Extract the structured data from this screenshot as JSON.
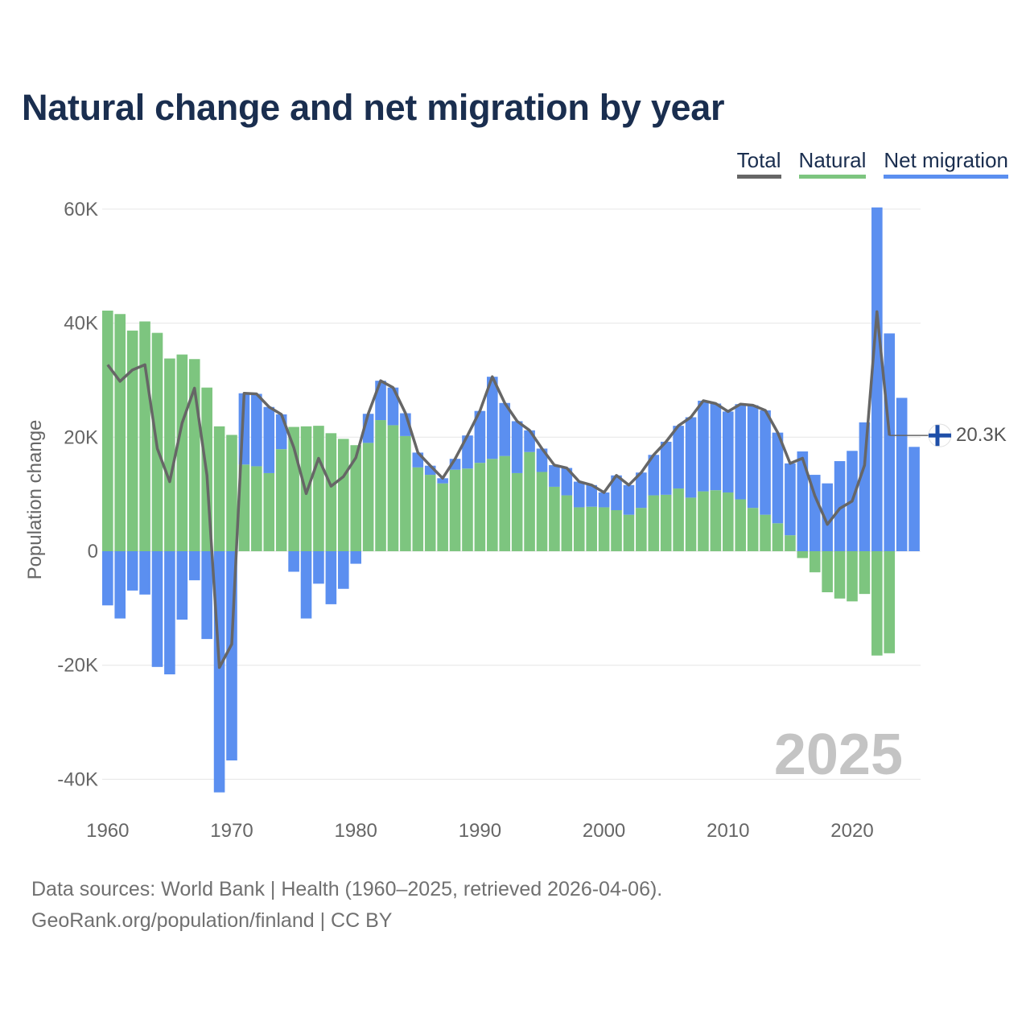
{
  "title": "Natural change and net migration by year",
  "legend": [
    {
      "label": "Total",
      "color": "#666666"
    },
    {
      "label": "Natural",
      "color": "#7dc57f"
    },
    {
      "label": "Net migration",
      "color": "#5b8ff0"
    }
  ],
  "footer": {
    "line1": "Data sources: World Bank | Health (1960–2025, retrieved 2026-04-06).",
    "line2": "GeoRank.org/population/finland | CC BY"
  },
  "chart_data": {
    "type": "bar",
    "stacked": true,
    "ylabel": "Population change",
    "ylim": [
      -40000,
      60000
    ],
    "yticks": [
      -40000,
      -20000,
      0,
      20000,
      40000,
      60000
    ],
    "ytick_labels": [
      "-40K",
      "-20K",
      "0",
      "20K",
      "40K",
      "60K"
    ],
    "xticks": [
      1960,
      1970,
      1980,
      1990,
      2000,
      2010,
      2020
    ],
    "year_start": 1960,
    "watermark_year": "2025",
    "end_label": "20.3K",
    "end_value": 20300,
    "flag_icon": "finland-flag-icon",
    "colors": {
      "natural": "#7dc57f",
      "migration": "#5b8ff0",
      "total": "#666666"
    },
    "series": [
      {
        "name": "Natural",
        "values": [
          42200,
          41600,
          38700,
          40300,
          38300,
          33800,
          34500,
          33700,
          28700,
          21900,
          20400,
          15200,
          14900,
          13700,
          17900,
          21800,
          21900,
          22000,
          20700,
          19700,
          18600,
          19000,
          23000,
          22100,
          20200,
          14700,
          13400,
          11900,
          14300,
          14500,
          15500,
          16200,
          16700,
          13700,
          17400,
          13900,
          11300,
          9800,
          7700,
          7800,
          7700,
          7200,
          6400,
          7600,
          9800,
          9900,
          11000,
          9400,
          10500,
          10700,
          10300,
          9100,
          7600,
          6400,
          4900,
          2800,
          -1200,
          -3700,
          -7200,
          -8300,
          -8800,
          -7500,
          -18300,
          -17900,
          0,
          0
        ]
      },
      {
        "name": "Net migration",
        "values": [
          -9500,
          -11800,
          -6900,
          -7600,
          -20300,
          -21600,
          -12000,
          -5100,
          -15400,
          -42300,
          -36700,
          12500,
          12700,
          11600,
          6100,
          -3600,
          -11800,
          -5700,
          -9300,
          -6600,
          -2200,
          5100,
          6900,
          6600,
          4000,
          2600,
          1600,
          900,
          1900,
          5800,
          9100,
          14400,
          9300,
          9100,
          3800,
          4100,
          3800,
          4800,
          4500,
          3800,
          2600,
          6100,
          5200,
          6200,
          7100,
          9300,
          11000,
          14100,
          15900,
          15200,
          14200,
          16700,
          18000,
          18300,
          15900,
          12600,
          17500,
          13400,
          11900,
          15800,
          17600,
          22600,
          60300,
          38200,
          26900,
          18300
        ]
      },
      {
        "name": "Total",
        "values": [
          32700,
          29800,
          31800,
          32700,
          18000,
          12200,
          22500,
          28600,
          13300,
          -20400,
          -16300,
          27700,
          27600,
          25300,
          24000,
          18200,
          10100,
          16300,
          11400,
          13100,
          16400,
          24100,
          29900,
          28700,
          24200,
          17300,
          15000,
          12800,
          16200,
          20300,
          24600,
          30600,
          26000,
          22800,
          21200,
          18000,
          15100,
          14600,
          12200,
          11600,
          10300,
          13300,
          11600,
          13800,
          16900,
          19200,
          22000,
          23500,
          26400,
          25900,
          24500,
          25800,
          25600,
          24700,
          20800,
          15400,
          16300,
          9700,
          4700,
          7500,
          8800,
          15100,
          42000,
          20300
        ]
      }
    ]
  }
}
